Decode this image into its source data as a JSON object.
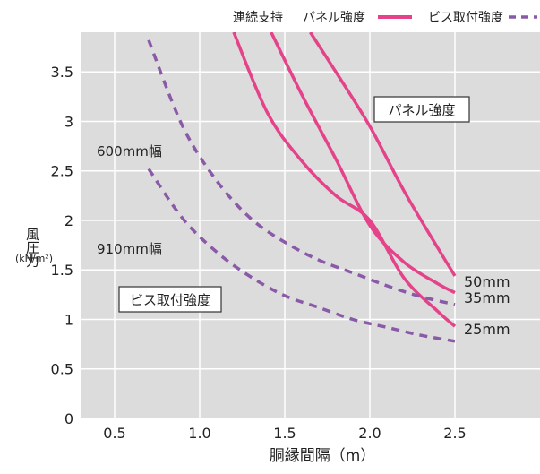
{
  "chart_data": {
    "type": "line",
    "xlabel": "胴縁間隔（m）",
    "ylabel": "風圧力",
    "ylabel_unit": "(kN/m²)",
    "xlim": [
      0.3,
      3.0
    ],
    "ylim": [
      0,
      3.9
    ],
    "x_ticks": [
      0.5,
      1.0,
      1.5,
      2.0,
      2.5
    ],
    "x_tick_labels": [
      "0.5",
      "1.0",
      "1.5",
      "2.0",
      "2.5"
    ],
    "y_ticks": [
      0,
      0.5,
      1,
      1.5,
      2,
      2.5,
      3,
      3.5
    ],
    "y_tick_labels": [
      "0",
      "0.5",
      "1",
      "1.5",
      "2",
      "2.5",
      "3",
      "3.5"
    ],
    "grid": true,
    "background_color": "#dcdcdc",
    "grid_color": "#ffffff",
    "legend": {
      "position": "top-right",
      "prefix": "連続支持",
      "items": [
        {
          "label": "パネル強度",
          "color": "#e4438a",
          "dash": "solid"
        },
        {
          "label": "ビス取付強度",
          "color": "#8a5aa8",
          "dash": "dashed"
        }
      ]
    },
    "series": [
      {
        "group": "panel",
        "label": "25mm",
        "color": "#e4438a",
        "dash": "solid",
        "x": [
          1.2,
          1.4,
          1.6,
          1.8,
          2.0,
          2.2,
          2.4,
          2.5
        ],
        "y": [
          3.9,
          3.08,
          2.6,
          2.25,
          2.0,
          1.42,
          1.08,
          0.93
        ]
      },
      {
        "group": "panel",
        "label": "35mm",
        "color": "#e4438a",
        "dash": "solid",
        "x": [
          1.42,
          1.6,
          1.8,
          2.0,
          2.2,
          2.4,
          2.5
        ],
        "y": [
          3.9,
          3.27,
          2.62,
          1.95,
          1.58,
          1.36,
          1.27
        ]
      },
      {
        "group": "panel",
        "label": "50mm",
        "color": "#e4438a",
        "dash": "solid",
        "x": [
          1.65,
          1.8,
          2.0,
          2.2,
          2.4,
          2.5
        ],
        "y": [
          3.9,
          3.5,
          2.95,
          2.3,
          1.72,
          1.44
        ]
      },
      {
        "group": "screw",
        "label": "600mm幅",
        "color": "#8a5aa8",
        "dash": "dashed",
        "x": [
          0.7,
          0.9,
          1.1,
          1.3,
          1.5,
          1.7,
          1.9,
          2.1,
          2.3,
          2.5
        ],
        "y": [
          3.82,
          2.95,
          2.4,
          2.02,
          1.78,
          1.6,
          1.47,
          1.34,
          1.23,
          1.15
        ]
      },
      {
        "group": "screw",
        "label": "910mm幅",
        "color": "#8a5aa8",
        "dash": "dashed",
        "x": [
          0.7,
          0.9,
          1.1,
          1.3,
          1.5,
          1.7,
          1.9,
          2.1,
          2.3,
          2.5
        ],
        "y": [
          2.52,
          2.02,
          1.68,
          1.43,
          1.24,
          1.12,
          1.0,
          0.92,
          0.84,
          0.78
        ]
      }
    ],
    "annotations": {
      "panel_strength_box": "パネル強度",
      "screw_strength_box": "ビス取付強度",
      "label_600": "600mm幅",
      "label_910": "910mm幅",
      "label_50": "50mm",
      "label_35": "35mm",
      "label_25": "25mm"
    }
  }
}
